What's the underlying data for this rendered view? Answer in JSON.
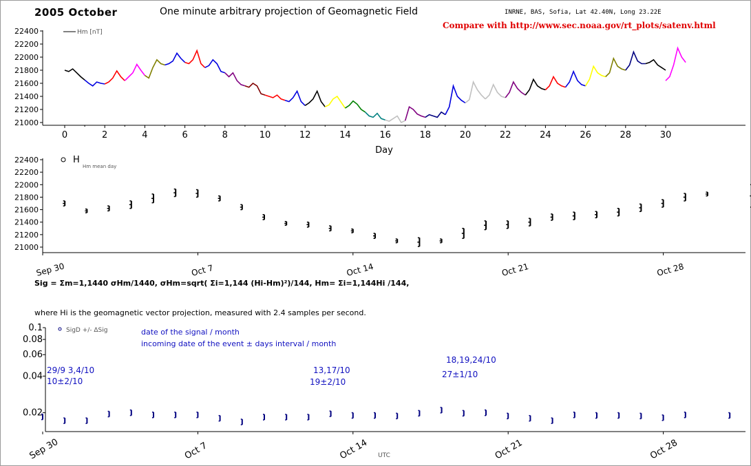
{
  "header": {
    "year_month": "2005 October",
    "title": "One minute arbitrary projection of Geomagnetic Field",
    "source": "INRNE, BAS, Sofia, Lat 42.40N, Long 23.22E",
    "compare": "Compare with http://www.sec.noaa.gov/rt_plots/satenv.html",
    "compare_color": "#e00000"
  },
  "formula": {
    "line1": "Sig = Σm=1,1440 σHm/1440, σHm=sqrt( Σi=1,144 (Hi-Hm)²)/144, Hm= Σi=1,144Hi /144,",
    "line2": "where Hi is the geomagnetic vector projection, measured with 2.4 samples per second."
  },
  "annotations": {
    "a1": "29/9 3,4/10",
    "a2": "10±2/10",
    "a3": "13,17/10",
    "a4": "19±2/10",
    "a5": "18,19,24/10",
    "a6": "27±1/10",
    "legend_line1": "date of the signal / month",
    "legend_line2": "incoming date of the event ± days interval / month",
    "color": "#1010c0"
  },
  "chart_data": [
    {
      "type": "line",
      "legend": "Hm [nT]",
      "xlabel": "Day",
      "xlim": [
        -1,
        31.5
      ],
      "xticks": [
        0,
        2,
        4,
        6,
        8,
        10,
        12,
        14,
        16,
        18,
        20,
        22,
        24,
        26,
        28,
        30
      ],
      "ylim": [
        20950,
        22450
      ],
      "yticks": [
        21000,
        21200,
        21400,
        21600,
        21800,
        22000,
        22200,
        22400
      ],
      "segment_colors": [
        "#000000",
        "#0000e0",
        "#ff0000",
        "#ff00ff",
        "#808000",
        "#0000e0",
        "#ff0000",
        "#0000e0",
        "#800080",
        "#800000",
        "#ff0000",
        "#0000e0",
        "#000000",
        "#ffff00",
        "#008000",
        "#008080",
        "#c0c0c0",
        "#800080",
        "#000080",
        "#0000e0",
        "#c0c0c0",
        "#c0c0c0",
        "#800080",
        "#000000",
        "#ff0000",
        "#0000e0",
        "#ffff00",
        "#808000",
        "#000080",
        "#000000",
        "#ff00ff"
      ],
      "series": [
        {
          "day": 0,
          "values": [
            21800,
            21780,
            21820,
            21760,
            21700,
            21650
          ]
        },
        {
          "day": 1,
          "values": [
            21650,
            21600,
            21560,
            21620,
            21600,
            21590
          ]
        },
        {
          "day": 2,
          "values": [
            21590,
            21620,
            21680,
            21790,
            21700,
            21640
          ]
        },
        {
          "day": 3,
          "values": [
            21640,
            21700,
            21760,
            21890,
            21800,
            21720
          ]
        },
        {
          "day": 4,
          "values": [
            21720,
            21680,
            21840,
            21960,
            21900,
            21880
          ]
        },
        {
          "day": 5,
          "values": [
            21880,
            21900,
            21940,
            22060,
            21980,
            21920
          ]
        },
        {
          "day": 6,
          "values": [
            21920,
            21900,
            21960,
            22100,
            21900,
            21840
          ]
        },
        {
          "day": 7,
          "values": [
            21840,
            21870,
            21960,
            21900,
            21780,
            21760
          ]
        },
        {
          "day": 8,
          "values": [
            21760,
            21700,
            21760,
            21640,
            21580,
            21560
          ]
        },
        {
          "day": 9,
          "values": [
            21560,
            21540,
            21600,
            21560,
            21440,
            21420
          ]
        },
        {
          "day": 10,
          "values": [
            21420,
            21400,
            21380,
            21420,
            21360,
            21340
          ]
        },
        {
          "day": 11,
          "values": [
            21340,
            21320,
            21380,
            21480,
            21320,
            21260
          ]
        },
        {
          "day": 12,
          "values": [
            21260,
            21300,
            21360,
            21480,
            21320,
            21240
          ]
        },
        {
          "day": 13,
          "values": [
            21240,
            21270,
            21360,
            21400,
            21310,
            21220
          ]
        },
        {
          "day": 14,
          "values": [
            21220,
            21260,
            21330,
            21280,
            21200,
            21160
          ]
        },
        {
          "day": 15,
          "values": [
            21160,
            21100,
            21080,
            21140,
            21060,
            21040
          ]
        },
        {
          "day": 16,
          "values": [
            21040,
            21020,
            21060,
            21100,
            21000,
            21030
          ]
        },
        {
          "day": 17,
          "values": [
            21030,
            21240,
            21200,
            21130,
            21100,
            21080
          ]
        },
        {
          "day": 18,
          "values": [
            21080,
            21120,
            21100,
            21080,
            21160,
            21120
          ]
        },
        {
          "day": 19,
          "values": [
            21120,
            21240,
            21560,
            21400,
            21340,
            21300
          ]
        },
        {
          "day": 20,
          "values": [
            21300,
            21350,
            21620,
            21500,
            21420,
            21360
          ]
        },
        {
          "day": 21,
          "values": [
            21360,
            21420,
            21580,
            21460,
            21400,
            21380
          ]
        },
        {
          "day": 22,
          "values": [
            21380,
            21460,
            21620,
            21520,
            21460,
            21420
          ]
        },
        {
          "day": 23,
          "values": [
            21420,
            21500,
            21660,
            21560,
            21520,
            21500
          ]
        },
        {
          "day": 24,
          "values": [
            21500,
            21560,
            21700,
            21600,
            21560,
            21540
          ]
        },
        {
          "day": 25,
          "values": [
            21540,
            21620,
            21780,
            21640,
            21580,
            21560
          ]
        },
        {
          "day": 26,
          "values": [
            21560,
            21660,
            21860,
            21760,
            21720,
            21700
          ]
        },
        {
          "day": 27,
          "values": [
            21700,
            21760,
            21980,
            21860,
            21820,
            21800
          ]
        },
        {
          "day": 28,
          "values": [
            21800,
            21880,
            22080,
            21940,
            21900,
            21900
          ]
        },
        {
          "day": 29,
          "values": [
            21900,
            21920,
            21960,
            21880,
            21840,
            21800
          ]
        },
        {
          "day": 30,
          "values": [
            21640,
            21700,
            21880,
            22140,
            22000,
            21920
          ]
        }
      ]
    },
    {
      "type": "scatter",
      "legend": "Hm mean day",
      "xlim": [
        -0.5,
        31.5
      ],
      "xticks": [
        "Sep 30",
        "Oct 7",
        "Oct 14",
        "Oct 21",
        "Oct 28"
      ],
      "xtick_days": [
        0,
        7,
        14,
        21,
        28
      ],
      "ylim": [
        20950,
        22450
      ],
      "yticks": [
        21000,
        21200,
        21400,
        21600,
        21800,
        22000,
        22200,
        22400
      ],
      "points": [
        {
          "day": 1,
          "mean": 21700,
          "err": 40
        },
        {
          "day": 2,
          "mean": 21580,
          "err": 30
        },
        {
          "day": 3,
          "mean": 21620,
          "err": 40
        },
        {
          "day": 4,
          "mean": 21680,
          "err": 60
        },
        {
          "day": 5,
          "mean": 21780,
          "err": 70
        },
        {
          "day": 6,
          "mean": 21870,
          "err": 60
        },
        {
          "day": 7,
          "mean": 21860,
          "err": 60
        },
        {
          "day": 8,
          "mean": 21780,
          "err": 40
        },
        {
          "day": 9,
          "mean": 21640,
          "err": 40
        },
        {
          "day": 10,
          "mean": 21480,
          "err": 40
        },
        {
          "day": 11,
          "mean": 21380,
          "err": 30
        },
        {
          "day": 12,
          "mean": 21360,
          "err": 40
        },
        {
          "day": 13,
          "mean": 21300,
          "err": 40
        },
        {
          "day": 14,
          "mean": 21260,
          "err": 30
        },
        {
          "day": 15,
          "mean": 21180,
          "err": 40
        },
        {
          "day": 16,
          "mean": 21100,
          "err": 30
        },
        {
          "day": 17,
          "mean": 21080,
          "err": 70
        },
        {
          "day": 18,
          "mean": 21100,
          "err": 30
        },
        {
          "day": 19,
          "mean": 21220,
          "err": 80
        },
        {
          "day": 20,
          "mean": 21350,
          "err": 70
        },
        {
          "day": 21,
          "mean": 21360,
          "err": 60
        },
        {
          "day": 22,
          "mean": 21400,
          "err": 60
        },
        {
          "day": 23,
          "mean": 21480,
          "err": 50
        },
        {
          "day": 24,
          "mean": 21500,
          "err": 60
        },
        {
          "day": 25,
          "mean": 21520,
          "err": 50
        },
        {
          "day": 26,
          "mean": 21560,
          "err": 60
        },
        {
          "day": 27,
          "mean": 21630,
          "err": 60
        },
        {
          "day": 28,
          "mean": 21700,
          "err": 60
        },
        {
          "day": 29,
          "mean": 21800,
          "err": 60
        },
        {
          "day": 30,
          "mean": 21850,
          "err": 30
        },
        {
          "day": 32,
          "mean": 21820,
          "err": 180
        }
      ]
    },
    {
      "type": "scatter",
      "legend": "SigD +/- ΔSig",
      "xlabel": "UTC",
      "ylog": true,
      "ylim": [
        0.014,
        0.1
      ],
      "yticks": [
        0.02,
        0.04,
        0.06,
        0.08,
        0.1
      ],
      "xticks": [
        "Sep 30",
        "Oct 7",
        "Oct 14",
        "Oct 21",
        "Oct 28"
      ],
      "xtick_days": [
        0,
        7,
        14,
        21,
        28
      ],
      "points": [
        {
          "day": 0,
          "value": 0.0185
        },
        {
          "day": 1,
          "value": 0.0172
        },
        {
          "day": 2,
          "value": 0.0172
        },
        {
          "day": 3,
          "value": 0.0195
        },
        {
          "day": 4,
          "value": 0.02
        },
        {
          "day": 5,
          "value": 0.0192
        },
        {
          "day": 6,
          "value": 0.0192
        },
        {
          "day": 7,
          "value": 0.0192
        },
        {
          "day": 8,
          "value": 0.018
        },
        {
          "day": 9,
          "value": 0.0168
        },
        {
          "day": 10,
          "value": 0.0184
        },
        {
          "day": 11,
          "value": 0.0184
        },
        {
          "day": 12,
          "value": 0.0184
        },
        {
          "day": 13,
          "value": 0.0196
        },
        {
          "day": 14,
          "value": 0.019
        },
        {
          "day": 15,
          "value": 0.019
        },
        {
          "day": 16,
          "value": 0.0188
        },
        {
          "day": 17,
          "value": 0.0198
        },
        {
          "day": 18,
          "value": 0.021
        },
        {
          "day": 19,
          "value": 0.0198
        },
        {
          "day": 20,
          "value": 0.02
        },
        {
          "day": 21,
          "value": 0.0188
        },
        {
          "day": 22,
          "value": 0.018
        },
        {
          "day": 23,
          "value": 0.0172
        },
        {
          "day": 24,
          "value": 0.0192
        },
        {
          "day": 25,
          "value": 0.019
        },
        {
          "day": 26,
          "value": 0.019
        },
        {
          "day": 27,
          "value": 0.0188
        },
        {
          "day": 28,
          "value": 0.0182
        },
        {
          "day": 29,
          "value": 0.0192
        },
        {
          "day": 31,
          "value": 0.019
        }
      ],
      "point_color": "#000080"
    }
  ]
}
